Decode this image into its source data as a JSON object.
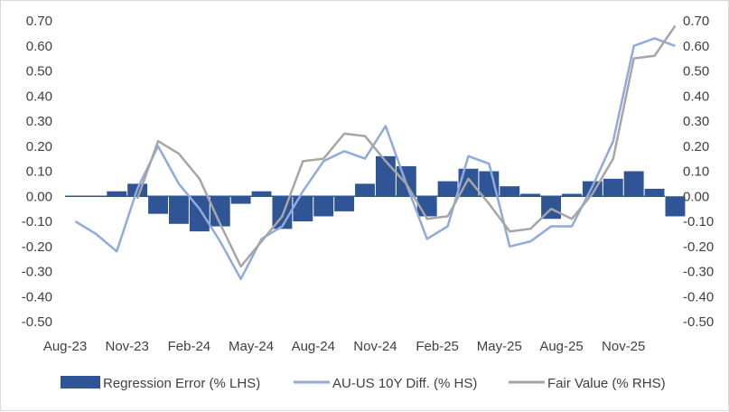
{
  "chart_data": {
    "type": "area",
    "title": "",
    "x_ticks": [
      "Aug-23",
      "Nov-23",
      "Feb-24",
      "May-24",
      "Aug-24",
      "Nov-24",
      "Feb-25",
      "May-25",
      "Aug-25",
      "Nov-25"
    ],
    "x_range": [
      "2023-08",
      "2026-01"
    ],
    "y_left": {
      "min": -0.5,
      "max": 0.7,
      "step": 0.1,
      "tick_labels": [
        "0.70",
        "0.60",
        "0.50",
        "0.40",
        "0.30",
        "0.20",
        "0.10",
        "0.00",
        "-0.10",
        "-0.20",
        "-0.30",
        "-0.40",
        "-0.50"
      ]
    },
    "y_right": {
      "min": -0.5,
      "max": 0.7,
      "step": 0.1,
      "tick_labels": [
        "0.70",
        "0.60",
        "0.50",
        "0.40",
        "0.30",
        "0.20",
        "0.10",
        "0.00",
        "-0.10",
        "-0.20",
        "-0.30",
        "-0.40",
        "-0.50"
      ]
    },
    "grid": false,
    "legend_position": "bottom",
    "series": [
      {
        "name": "Regression Error (% LHS)",
        "kind": "bar",
        "color": "#2f5597",
        "x": [
          "2023-08",
          "2023-09",
          "2023-10",
          "2023-11",
          "2023-12",
          "2024-01",
          "2024-02",
          "2024-03",
          "2024-04",
          "2024-05",
          "2024-06",
          "2024-07",
          "2024-08",
          "2024-09",
          "2024-10",
          "2024-11",
          "2024-12",
          "2025-01",
          "2025-02",
          "2025-03",
          "2025-04",
          "2025-05",
          "2025-06",
          "2025-07",
          "2025-08",
          "2025-09",
          "2025-10",
          "2025-11",
          "2025-12",
          "2026-01"
        ],
        "values": [
          0.0,
          0.0,
          0.02,
          0.05,
          -0.07,
          -0.11,
          -0.14,
          -0.12,
          -0.03,
          0.02,
          -0.13,
          -0.1,
          -0.08,
          -0.06,
          0.05,
          0.16,
          0.12,
          -0.08,
          0.06,
          0.11,
          0.1,
          0.04,
          0.01,
          -0.09,
          0.01,
          0.06,
          0.07,
          0.1,
          0.03,
          -0.08
        ]
      },
      {
        "name": "AU-US 10Y Diff. (% HS)",
        "kind": "line",
        "color": "#8faadc",
        "x": [
          "2023-08",
          "2023-09",
          "2023-10",
          "2023-11",
          "2023-12",
          "2024-01",
          "2024-02",
          "2024-03",
          "2024-04",
          "2024-05",
          "2024-06",
          "2024-07",
          "2024-08",
          "2024-09",
          "2024-10",
          "2024-11",
          "2024-12",
          "2025-01",
          "2025-02",
          "2025-03",
          "2025-04",
          "2025-05",
          "2025-06",
          "2025-07",
          "2025-08",
          "2025-09",
          "2025-10",
          "2025-11",
          "2025-12",
          "2026-01"
        ],
        "values": [
          -0.1,
          -0.15,
          -0.22,
          0.03,
          0.2,
          0.05,
          -0.05,
          -0.18,
          -0.33,
          -0.17,
          -0.12,
          0.02,
          0.14,
          0.18,
          0.15,
          0.28,
          0.05,
          -0.17,
          -0.12,
          0.16,
          0.13,
          -0.2,
          -0.18,
          -0.12,
          -0.12,
          0.04,
          0.22,
          0.6,
          0.63,
          0.6
        ]
      },
      {
        "name": "Fair Value (% RHS)",
        "kind": "line",
        "color": "#a6a6a6",
        "x": [
          "2023-08",
          "2023-09",
          "2023-10",
          "2023-11",
          "2023-12",
          "2024-01",
          "2024-02",
          "2024-03",
          "2024-04",
          "2024-05",
          "2024-06",
          "2024-07",
          "2024-08",
          "2024-09",
          "2024-10",
          "2024-11",
          "2024-12",
          "2025-01",
          "2025-02",
          "2025-03",
          "2025-04",
          "2025-05",
          "2025-06",
          "2025-07",
          "2025-08",
          "2025-09",
          "2025-10",
          "2025-11",
          "2025-12",
          "2026-01"
        ],
        "values": [
          null,
          null,
          null,
          -0.01,
          0.22,
          0.17,
          0.07,
          -0.11,
          -0.28,
          -0.18,
          -0.08,
          0.14,
          0.15,
          0.25,
          0.24,
          0.14,
          0.05,
          -0.09,
          -0.08,
          0.07,
          -0.03,
          -0.14,
          -0.13,
          -0.05,
          -0.09,
          0.01,
          0.15,
          0.55,
          0.56,
          0.68
        ]
      }
    ]
  }
}
